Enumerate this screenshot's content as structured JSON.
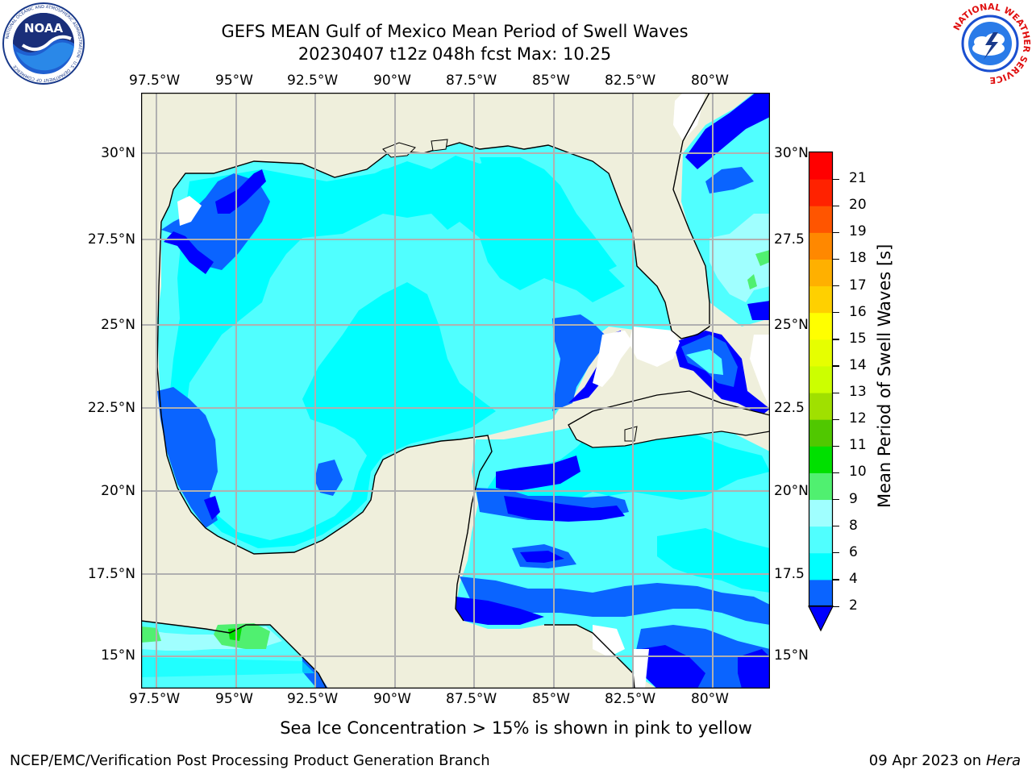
{
  "header": {
    "title": "GEFS MEAN Gulf of Mexico Mean Period of Swell Waves",
    "subtitle": "20230407 t12z 048h fcst   Max: 10.25"
  },
  "logos": {
    "noaa_text": "NOAA",
    "noaa_ring": "NATIONAL OCEANIC AND ATMOSPHERIC ADMINISTRATION · U.S. DEPARTMENT OF COMMERCE",
    "nws_ring": "NATIONAL WEATHER SERVICE"
  },
  "map": {
    "lon_labels": [
      "97.5°W",
      "95°W",
      "92.5°W",
      "90°W",
      "87.5°W",
      "85°W",
      "82.5°W",
      "80°W"
    ],
    "lat_labels_left": [
      "30°N",
      "27.5°N",
      "25°N",
      "22.5°N",
      "20°N",
      "17.5°N",
      "15°N"
    ],
    "lat_labels_right": [
      "30°N",
      "27.5",
      "25°N",
      "22.5",
      "20°N",
      "17.5",
      "15°N"
    ],
    "colors": {
      "land": "#efefdc",
      "grid": "#b0b0b0",
      "no_data": "#ffffff"
    }
  },
  "colorbar": {
    "label": "Mean Period of Swell Waves [s]",
    "ticks": [
      "2",
      "4",
      "6",
      "8",
      "9",
      "10",
      "11",
      "12",
      "13",
      "14",
      "15",
      "16",
      "17",
      "18",
      "19",
      "20",
      "21"
    ],
    "under_color": "#0000ff",
    "colors": [
      "#0a64ff",
      "#00ffff",
      "#50ffff",
      "#a0ffff",
      "#50f070",
      "#00e000",
      "#50c800",
      "#a0e000",
      "#ccff00",
      "#e6ff00",
      "#ffff00",
      "#ffd000",
      "#ffb000",
      "#ff8800",
      "#ff5500",
      "#ff2200",
      "#ff0000"
    ]
  },
  "note": "Sea Ice Concentration > 15% is shown in pink to yellow",
  "footer": {
    "left": "NCEP/EMC/Verification Post Processing Product Generation Branch",
    "right_prefix": "09 Apr 2023 on ",
    "right_host": "Hera"
  }
}
